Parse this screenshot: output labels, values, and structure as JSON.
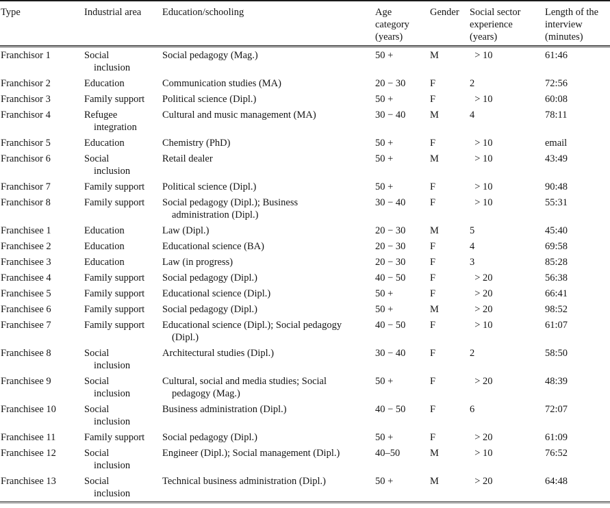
{
  "table": {
    "columns": [
      {
        "key": "type",
        "label": "Type"
      },
      {
        "key": "area",
        "label": "Industrial area"
      },
      {
        "key": "education",
        "label": "Education/schooling"
      },
      {
        "key": "age",
        "label": "Age\ncategory\n(years)"
      },
      {
        "key": "gender",
        "label": "Gender"
      },
      {
        "key": "experience",
        "label": "Social sector\nexperience\n(years)"
      },
      {
        "key": "length",
        "label": "Length of the\ninterview\n(minutes)"
      }
    ],
    "rows": [
      {
        "type": "Franchisor 1",
        "area": "Social\ninclusion",
        "education": "Social pedagogy (Mag.)",
        "age": "50 +",
        "gender": "M",
        "experience": "  > 10",
        "length": "61:46"
      },
      {
        "type": "Franchisor 2",
        "area": "Education",
        "education": "Communication studies (MA)",
        "age": "20 − 30",
        "gender": "F",
        "experience": "2",
        "length": "72:56"
      },
      {
        "type": "Franchisor 3",
        "area": "Family support",
        "education": "Political science (Dipl.)",
        "age": "50 +",
        "gender": "F",
        "experience": "  > 10",
        "length": "60:08"
      },
      {
        "type": "Franchisor 4",
        "area": "Refugee\nintegration",
        "education": "Cultural and music management (MA)",
        "age": "30 − 40",
        "gender": "M",
        "experience": "4",
        "length": "78:11"
      },
      {
        "type": "Franchisor 5",
        "area": "Education",
        "education": "Chemistry (PhD)",
        "age": "50 +",
        "gender": "F",
        "experience": "  > 10",
        "length": "email"
      },
      {
        "type": "Franchisor 6",
        "area": "Social\ninclusion",
        "education": "Retail dealer",
        "age": "50 +",
        "gender": "M",
        "experience": "  > 10",
        "length": "43:49"
      },
      {
        "type": "Franchisor 7",
        "area": "Family support",
        "education": "Political science (Dipl.)",
        "age": "50 +",
        "gender": "F",
        "experience": "  > 10",
        "length": "90:48"
      },
      {
        "type": "Franchisor 8",
        "area": "Family support",
        "education": "Social pedagogy (Dipl.); Business\nadministration (Dipl.)",
        "age": "30 − 40",
        "gender": "F",
        "experience": "  > 10",
        "length": "55:31"
      },
      {
        "type": "Franchisee 1",
        "area": "Education",
        "education": "Law (Dipl.)",
        "age": "20 − 30",
        "gender": "M",
        "experience": "5",
        "length": "45:40"
      },
      {
        "type": "Franchisee 2",
        "area": "Education",
        "education": "Educational science (BA)",
        "age": "20 − 30",
        "gender": "F",
        "experience": "4",
        "length": "69:58"
      },
      {
        "type": "Franchisee 3",
        "area": "Education",
        "education": "Law (in progress)",
        "age": "20 − 30",
        "gender": "F",
        "experience": "3",
        "length": "85:28"
      },
      {
        "type": "Franchisee 4",
        "area": "Family support",
        "education": "Social pedagogy (Dipl.)",
        "age": "40 − 50",
        "gender": "F",
        "experience": "  > 20",
        "length": "56:38"
      },
      {
        "type": "Franchisee 5",
        "area": "Family support",
        "education": "Educational science (Dipl.)",
        "age": "50 +",
        "gender": "F",
        "experience": "  > 20",
        "length": "66:41"
      },
      {
        "type": "Franchisee 6",
        "area": "Family support",
        "education": "Social pedagogy (Dipl.)",
        "age": "50 +",
        "gender": "M",
        "experience": "  > 20",
        "length": "98:52"
      },
      {
        "type": "Franchisee 7",
        "area": "Family support",
        "education": "Educational science (Dipl.); Social pedagogy\n(Dipl.)",
        "age": "40 − 50",
        "gender": "F",
        "experience": "  > 10",
        "length": "61:07"
      },
      {
        "type": "Franchisee 8",
        "area": "Social\ninclusion",
        "education": "Architectural studies (Dipl.)",
        "age": "30 − 40",
        "gender": "F",
        "experience": "2",
        "length": "58:50"
      },
      {
        "type": "Franchisee 9",
        "area": "Social\ninclusion",
        "education": "Cultural, social and media studies; Social\npedagogy (Mag.)",
        "age": "50 +",
        "gender": "F",
        "experience": "  > 20",
        "length": "48:39"
      },
      {
        "type": "Franchisee 10",
        "area": "Social\ninclusion",
        "education": "Business administration (Dipl.)",
        "age": "40 − 50",
        "gender": "F",
        "experience": "6",
        "length": "72:07"
      },
      {
        "type": "Franchisee 11",
        "area": "Family support",
        "education": "Social pedagogy (Dipl.)",
        "age": "50 +",
        "gender": "F",
        "experience": "  > 20",
        "length": "61:09"
      },
      {
        "type": "Franchisee 12",
        "area": "Social\ninclusion",
        "education": "Engineer (Dipl.); Social management (Dipl.)",
        "age": "40–50",
        "gender": "M",
        "experience": "  > 10",
        "length": "76:52"
      },
      {
        "type": "Franchisee 13",
        "area": "Social\ninclusion",
        "education": "Technical business administration (Dipl.)",
        "age": "50 +",
        "gender": "M",
        "experience": "  > 20",
        "length": "64:48"
      }
    ]
  }
}
